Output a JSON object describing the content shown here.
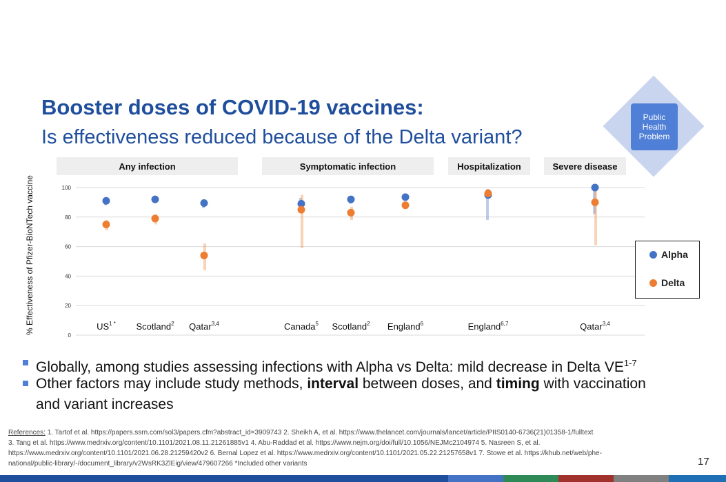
{
  "slide": {
    "title": "Booster doses of COVID-19 vaccines:",
    "subtitle": "Is effectiveness reduced because of the Delta variant?",
    "badge": [
      "Public",
      "Health",
      "Problem"
    ],
    "page_number": "17"
  },
  "chart_data": {
    "type": "scatter",
    "ylabel": "% Effectiveness of Pfizer-BioNTech vaccine",
    "ylim": [
      0,
      100
    ],
    "yticks": [
      "0",
      "20",
      "40",
      "60",
      "80",
      "100"
    ],
    "groups": [
      "Any infection",
      "Symptomatic infection",
      "Hospitalization",
      "Severe disease"
    ],
    "categories": [
      {
        "label": "US",
        "sup": "1 *",
        "group": "Any infection"
      },
      {
        "label": "Scotland",
        "sup": "2",
        "group": "Any infection"
      },
      {
        "label": "Qatar",
        "sup": "3,4",
        "group": "Any infection"
      },
      {
        "label": "Canada",
        "sup": "5",
        "group": "Symptomatic infection"
      },
      {
        "label": "Scotland",
        "sup": "2",
        "group": "Symptomatic infection"
      },
      {
        "label": "England",
        "sup": "6",
        "group": "Symptomatic infection"
      },
      {
        "label": "England",
        "sup": "6,7",
        "group": "Hospitalization"
      },
      {
        "label": "Qatar",
        "sup": "3,4",
        "group": "Severe disease"
      }
    ],
    "series": [
      {
        "name": "Alpha",
        "color": "#4472c4",
        "values": [
          91,
          92,
          89.5,
          89,
          92,
          93.5,
          95,
          100
        ],
        "ci_low": [
          88,
          90,
          86,
          84,
          89,
          92,
          78,
          82
        ],
        "ci_high": [
          93,
          94,
          92,
          93,
          94,
          95,
          99,
          100
        ]
      },
      {
        "name": "Delta",
        "color": "#ed7d31",
        "values": [
          75,
          79,
          54,
          85,
          83,
          88,
          96,
          90
        ],
        "ci_low": [
          71,
          75,
          44,
          59,
          78,
          86,
          93,
          61
        ],
        "ci_high": [
          78,
          82,
          62,
          95,
          87,
          90,
          99,
          98
        ]
      }
    ]
  },
  "bullets": {
    "b1_text": "Globally, among studies assessing infections with Alpha vs Delta: mild decrease in Delta VE",
    "b1_sup": "1-7",
    "b2_pre": "Other factors may include study methods, ",
    "b2_bold1": "interval",
    "b2_mid": " between doses, and ",
    "b2_bold2": "timing",
    "b2_post": " with vaccination",
    "b2_line2": "and variant increases"
  },
  "references": {
    "label": "References:",
    "line1": " 1. Tartof et al. https://papers.ssrn.com/sol3/papers.cfm?abstract_id=3909743   2. Sheikh A, et al. https://www.thelancet.com/journals/lancet/article/PIIS0140-6736(21)01358-1/fulltext",
    "line2": "3. Tang et al. https://www.medrxiv.org/content/10.1101/2021.08.11.21261885v1 4. Abu-Raddad et al. https://www.nejm.org/doi/full/10.1056/NEJMc2104974 5. Nasreen S, et al.",
    "line3": "https://www.medrxiv.org/content/10.1101/2021.06.28.21259420v2 6. Bernal Lopez et al. https://www.medrxiv.org/content/10.1101/2021.05.22.21257658v1  7. Stowe et al. https://khub.net/web/phe-",
    "line4": "national/public-library/-/document_library/v2WsRK3ZlEig/view/479607266  *Included other variants"
  },
  "colors": {
    "title": "#1f4e9c",
    "alpha": "#4472c4",
    "delta": "#ed7d31",
    "bar_segments": [
      "#4472c4",
      "#2e8b57",
      "#a0322b",
      "#808080",
      "#1f6fb5"
    ]
  }
}
